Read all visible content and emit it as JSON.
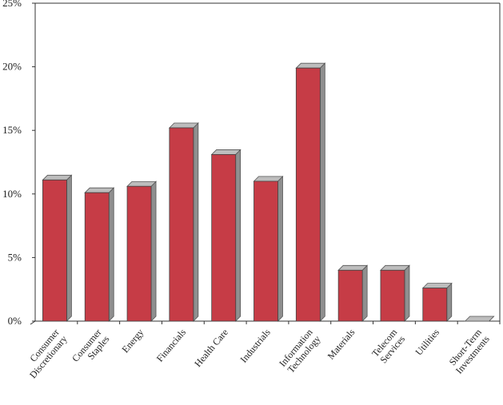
{
  "chart_data": {
    "type": "bar",
    "title": "",
    "xlabel": "",
    "ylabel": "",
    "categories": [
      [
        "Consumer",
        "Discretionary"
      ],
      [
        "Consumer",
        "Staples"
      ],
      [
        "Energy"
      ],
      [
        "Financials"
      ],
      [
        "Health Care"
      ],
      [
        "Industrials"
      ],
      [
        "Information",
        "Technology"
      ],
      [
        "Materials"
      ],
      [
        "Telecom",
        "Services"
      ],
      [
        "Utilities"
      ],
      [
        "Short-Term",
        "Investments"
      ]
    ],
    "values": [
      11.1,
      10.1,
      10.6,
      15.2,
      13.1,
      11.0,
      19.9,
      4.0,
      4.0,
      2.6,
      0.0
    ],
    "ylim": [
      0,
      25
    ],
    "y_ticks": [
      0,
      5,
      10,
      15,
      20,
      25
    ],
    "y_tick_labels": [
      "0%",
      "5%",
      "10%",
      "15%",
      "20%",
      "25%"
    ],
    "bar_color": "#c63c46",
    "bar_side_color": "#8f8f8f",
    "bar_top_color": "#bdbdbd",
    "style": "3d",
    "grid": false,
    "legend": "none"
  }
}
